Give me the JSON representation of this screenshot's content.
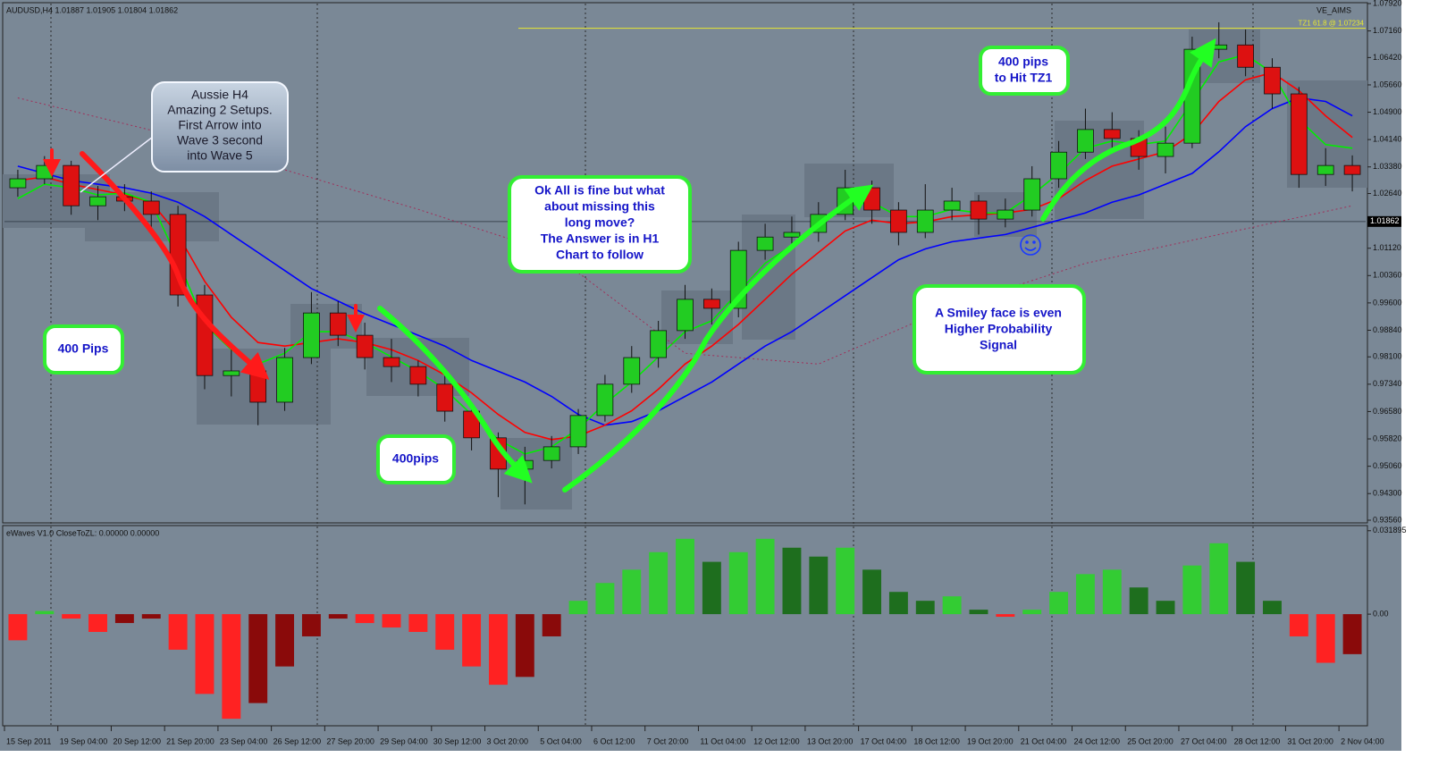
{
  "chart_data": [
    {
      "type": "candlestick",
      "title": "AUDUSD,H4  1.01887 1.01905 1.01804 1.01862",
      "indicator": "VE_AIMS",
      "categories": [
        "15 Sep 2011",
        null,
        "19 Sep 04:00",
        null,
        "20 Sep 12:00",
        null,
        "21 Sep 20:00",
        null,
        "23 Sep 04:00",
        null,
        "26 Sep 12:00",
        null,
        "27 Sep 20:00",
        null,
        "29 Sep 04:00",
        null,
        "30 Sep 12:00",
        null,
        "3 Oct 20:00",
        null,
        "5 Oct 04:00",
        null,
        "6 Oct 12:00",
        null,
        "7 Oct 20:00",
        null,
        "11 Oct 04:00",
        null,
        "12 Oct 12:00",
        null,
        "13 Oct 20:00",
        null,
        "17 Oct 04:00",
        null,
        "18 Oct 12:00",
        null,
        "19 Oct 20:00",
        null,
        "21 Oct 04:00",
        null,
        "24 Oct 12:00",
        null,
        "25 Oct 20:00",
        null,
        "27 Oct 04:00",
        null,
        "28 Oct 12:00",
        null,
        "31 Oct 20:00",
        null,
        "2 Nov 04:00"
      ],
      "open": [
        1.028,
        1.0305,
        1.0342,
        1.023,
        1.0255,
        1.0243,
        1.0206,
        0.9982,
        0.9758,
        0.9771,
        0.9684,
        0.9808,
        0.9932,
        0.987,
        0.9808,
        0.9783,
        0.9734,
        0.9659,
        0.9585,
        0.9498,
        0.9522,
        0.956,
        0.9647,
        0.9734,
        0.9808,
        0.9883,
        0.997,
        0.9945,
        1.0106,
        1.0143,
        1.0156,
        1.0206,
        1.028,
        1.0218,
        1.0156,
        1.0218,
        1.0243,
        1.0193,
        1.0218,
        1.0305,
        1.0379,
        1.0442,
        1.0417,
        1.0367,
        1.0404,
        1.0665,
        1.0677,
        1.0615,
        1.0541,
        1.0317,
        1.0342
      ],
      "high": [
        1.033,
        1.0368,
        1.0355,
        1.0285,
        1.029,
        1.027,
        1.023,
        1.001,
        0.983,
        0.98,
        0.9835,
        0.999,
        0.9965,
        0.9905,
        0.986,
        0.98,
        0.976,
        0.968,
        0.96,
        0.956,
        0.959,
        0.9665,
        0.976,
        0.984,
        0.991,
        1.001,
        1.0,
        1.013,
        1.018,
        1.02,
        1.024,
        1.033,
        1.03,
        1.024,
        1.029,
        1.028,
        1.026,
        1.025,
        1.034,
        1.041,
        1.05,
        1.049,
        1.044,
        1.045,
        1.07,
        1.074,
        1.072,
        1.064,
        1.056,
        1.039,
        1.037
      ],
      "low": [
        1.0255,
        1.029,
        1.0205,
        1.019,
        1.0215,
        1.016,
        0.995,
        0.972,
        0.97,
        0.962,
        0.966,
        0.979,
        0.984,
        0.9775,
        0.974,
        0.97,
        0.963,
        0.955,
        0.942,
        0.94,
        0.95,
        0.954,
        0.963,
        0.971,
        0.978,
        0.986,
        0.99,
        0.992,
        1.008,
        1.011,
        1.013,
        1.019,
        1.018,
        1.012,
        1.014,
        1.019,
        1.015,
        1.017,
        1.02,
        1.028,
        1.036,
        1.039,
        1.033,
        1.032,
        1.039,
        1.064,
        1.059,
        1.05,
        1.028,
        1.0285,
        1.027
      ],
      "close": [
        1.0305,
        1.0342,
        1.023,
        1.0255,
        1.0243,
        1.0206,
        0.9982,
        0.9758,
        0.9771,
        0.9684,
        0.9808,
        0.9932,
        0.987,
        0.9808,
        0.9783,
        0.9734,
        0.9659,
        0.9585,
        0.9498,
        0.9522,
        0.956,
        0.9647,
        0.9734,
        0.9808,
        0.9883,
        0.997,
        0.9945,
        1.0106,
        1.0143,
        1.0156,
        1.0206,
        1.028,
        1.0218,
        1.0156,
        1.0218,
        1.0243,
        1.0193,
        1.0218,
        1.0305,
        1.0379,
        1.0442,
        1.0417,
        1.0367,
        1.0404,
        1.0665,
        1.0677,
        1.0615,
        1.0541,
        1.0317,
        1.0342,
        1.0317
      ],
      "up_color": "#22cc22",
      "down_color": "#dd1111",
      "series": [
        {
          "color": "#0000ff",
          "values": [
            1.034,
            1.032,
            1.03,
            1.029,
            1.028,
            1.0265,
            1.024,
            1.02,
            1.015,
            1.01,
            1.005,
            1.0,
            0.9965,
            0.993,
            0.99,
            0.987,
            0.984,
            0.98,
            0.977,
            0.974,
            0.97,
            0.965,
            0.962,
            0.963,
            0.966,
            0.97,
            0.974,
            0.979,
            0.984,
            0.988,
            0.993,
            0.998,
            1.003,
            1.008,
            1.011,
            1.013,
            1.014,
            1.015,
            1.017,
            1.019,
            1.021,
            1.024,
            1.026,
            1.029,
            1.032,
            1.038,
            1.045,
            1.05,
            1.053,
            1.052,
            1.048
          ]
        },
        {
          "color": "#ff0000",
          "values": [
            1.03,
            1.031,
            1.029,
            1.0275,
            1.026,
            1.024,
            1.015,
            1.002,
            0.992,
            0.985,
            0.984,
            0.985,
            0.986,
            0.985,
            0.983,
            0.98,
            0.976,
            0.971,
            0.965,
            0.96,
            0.958,
            0.959,
            0.962,
            0.966,
            0.972,
            0.979,
            0.984,
            0.99,
            0.997,
            1.004,
            1.01,
            1.016,
            1.019,
            1.018,
            1.0185,
            1.02,
            1.0205,
            1.021,
            1.022,
            1.025,
            1.03,
            1.034,
            1.036,
            1.038,
            1.043,
            1.052,
            1.058,
            1.06,
            1.055,
            1.048,
            1.042
          ]
        },
        {
          "color": "#00ee00",
          "values": [
            1.025,
            1.029,
            1.028,
            1.026,
            1.0265,
            1.024,
            1.008,
            0.99,
            0.983,
            0.979,
            0.982,
            0.988,
            0.988,
            0.985,
            0.981,
            0.977,
            0.972,
            0.965,
            0.958,
            0.954,
            0.956,
            0.961,
            0.968,
            0.974,
            0.981,
            0.988,
            0.991,
            0.999,
            1.007,
            1.012,
            1.017,
            1.023,
            1.024,
            1.02,
            1.02,
            1.022,
            1.021,
            1.021,
            1.026,
            1.032,
            1.039,
            1.041,
            1.04,
            1.041,
            1.052,
            1.063,
            1.065,
            1.06,
            1.047,
            1.04,
            1.039
          ]
        },
        {
          "color": "#a0305a",
          "dashed": true,
          "values": [
            1.053,
            1.0512,
            1.0494,
            1.0476,
            1.0458,
            1.044,
            1.0418,
            1.0396,
            1.0374,
            1.0352,
            1.033,
            1.0308,
            1.0286,
            1.0264,
            1.0242,
            1.022,
            1.0196,
            1.0172,
            1.0148,
            1.0124,
            1.01,
            1.0044,
            0.9988,
            0.9932,
            0.9876,
            0.982,
            0.9814,
            0.9808,
            0.9802,
            0.9796,
            0.979,
            0.9822,
            0.9854,
            0.9886,
            0.9918,
            0.995,
            0.9974,
            0.9998,
            1.0022,
            1.0046,
            1.007,
            1.0086,
            1.0102,
            1.0118,
            1.0134,
            1.015,
            1.0166,
            1.0182,
            1.0198,
            1.0214,
            1.023
          ]
        }
      ],
      "ylim": [
        0.9356,
        1.0792
      ],
      "yticks": [
        {
          "value": 1.0792,
          "label": "1.07920"
        },
        {
          "value": 1.0716,
          "label": "1.07160"
        },
        {
          "value": 1.0642,
          "label": "1.06420"
        },
        {
          "value": 1.0566,
          "label": "1.05660"
        },
        {
          "value": 1.049,
          "label": "1.04900"
        },
        {
          "value": 1.0414,
          "label": "1.04140"
        },
        {
          "value": 1.0338,
          "label": "1.03380"
        },
        {
          "value": 1.0264,
          "label": "1.02640"
        },
        {
          "value": 1.0112,
          "label": "1.01120"
        },
        {
          "value": 1.0036,
          "label": "1.00360"
        },
        {
          "value": 0.996,
          "label": "0.99600"
        },
        {
          "value": 0.9884,
          "label": "0.98840"
        },
        {
          "value": 0.981,
          "label": "0.98100"
        },
        {
          "value": 0.9734,
          "label": "0.97340"
        },
        {
          "value": 0.9658,
          "label": "0.96580"
        },
        {
          "value": 0.9582,
          "label": "0.95820"
        },
        {
          "value": 0.9506,
          "label": "0.95060"
        },
        {
          "value": 0.943,
          "label": "0.94300"
        },
        {
          "value": 0.9356,
          "label": "0.93560"
        }
      ],
      "grid": false,
      "current_price": {
        "value": 1.01862,
        "label": "1.01862"
      },
      "target_line": {
        "value": 1.07234,
        "label": "TZ1  61.8 @ 1.07234",
        "color": "#e8e830"
      },
      "annotations": {
        "aussie": [
          "Aussie H4",
          "Amazing 2 Setups.",
          "First Arrow into",
          "Wave 3 second",
          "into Wave 5"
        ],
        "question": [
          "Ok All is fine but what",
          "about missing this",
          "long move?",
          "The Answer is in H1",
          "Chart to follow"
        ],
        "pips_1": [
          "400 Pips"
        ],
        "pips_2": [
          "400pips"
        ],
        "pips_3": [
          "400 pips",
          "to Hit TZ1"
        ],
        "smiley": [
          "A Smiley face is even",
          "Higher Probability",
          "Signal"
        ]
      }
    },
    {
      "type": "bar",
      "title": "eWaves V1.0 CloseToZL: 0.00000 0.00000",
      "values": [
        -0.01,
        0.0012,
        -0.0017,
        -0.0068,
        -0.0034,
        -0.0017,
        -0.0136,
        -0.0305,
        -0.04,
        -0.034,
        -0.02,
        -0.0085,
        -0.0017,
        -0.0034,
        -0.0051,
        -0.0068,
        -0.0136,
        -0.02,
        -0.027,
        -0.024,
        -0.0085,
        0.0051,
        0.0119,
        0.017,
        0.0237,
        0.0288,
        0.02,
        0.0237,
        0.0288,
        0.0254,
        0.022,
        0.0254,
        0.017,
        0.0085,
        0.0051,
        0.0068,
        0.0017,
        -0.001,
        0.0017,
        0.0085,
        0.0153,
        0.017,
        0.0102,
        0.0051,
        0.0186,
        0.0271,
        0.02,
        0.0051,
        -0.0085,
        -0.0186,
        -0.0153
      ],
      "colors": {
        "rising_above": "#33cc33",
        "falling_above": "#1e6e1e",
        "falling_below": "#ff2222",
        "rising_below": "#8a0a0a"
      },
      "ylim": [
        -0.042,
        0.0325
      ],
      "yticks": [
        {
          "value": 0.031895,
          "label": "0.031895"
        },
        {
          "value": 0,
          "label": "0.00"
        }
      ]
    }
  ]
}
